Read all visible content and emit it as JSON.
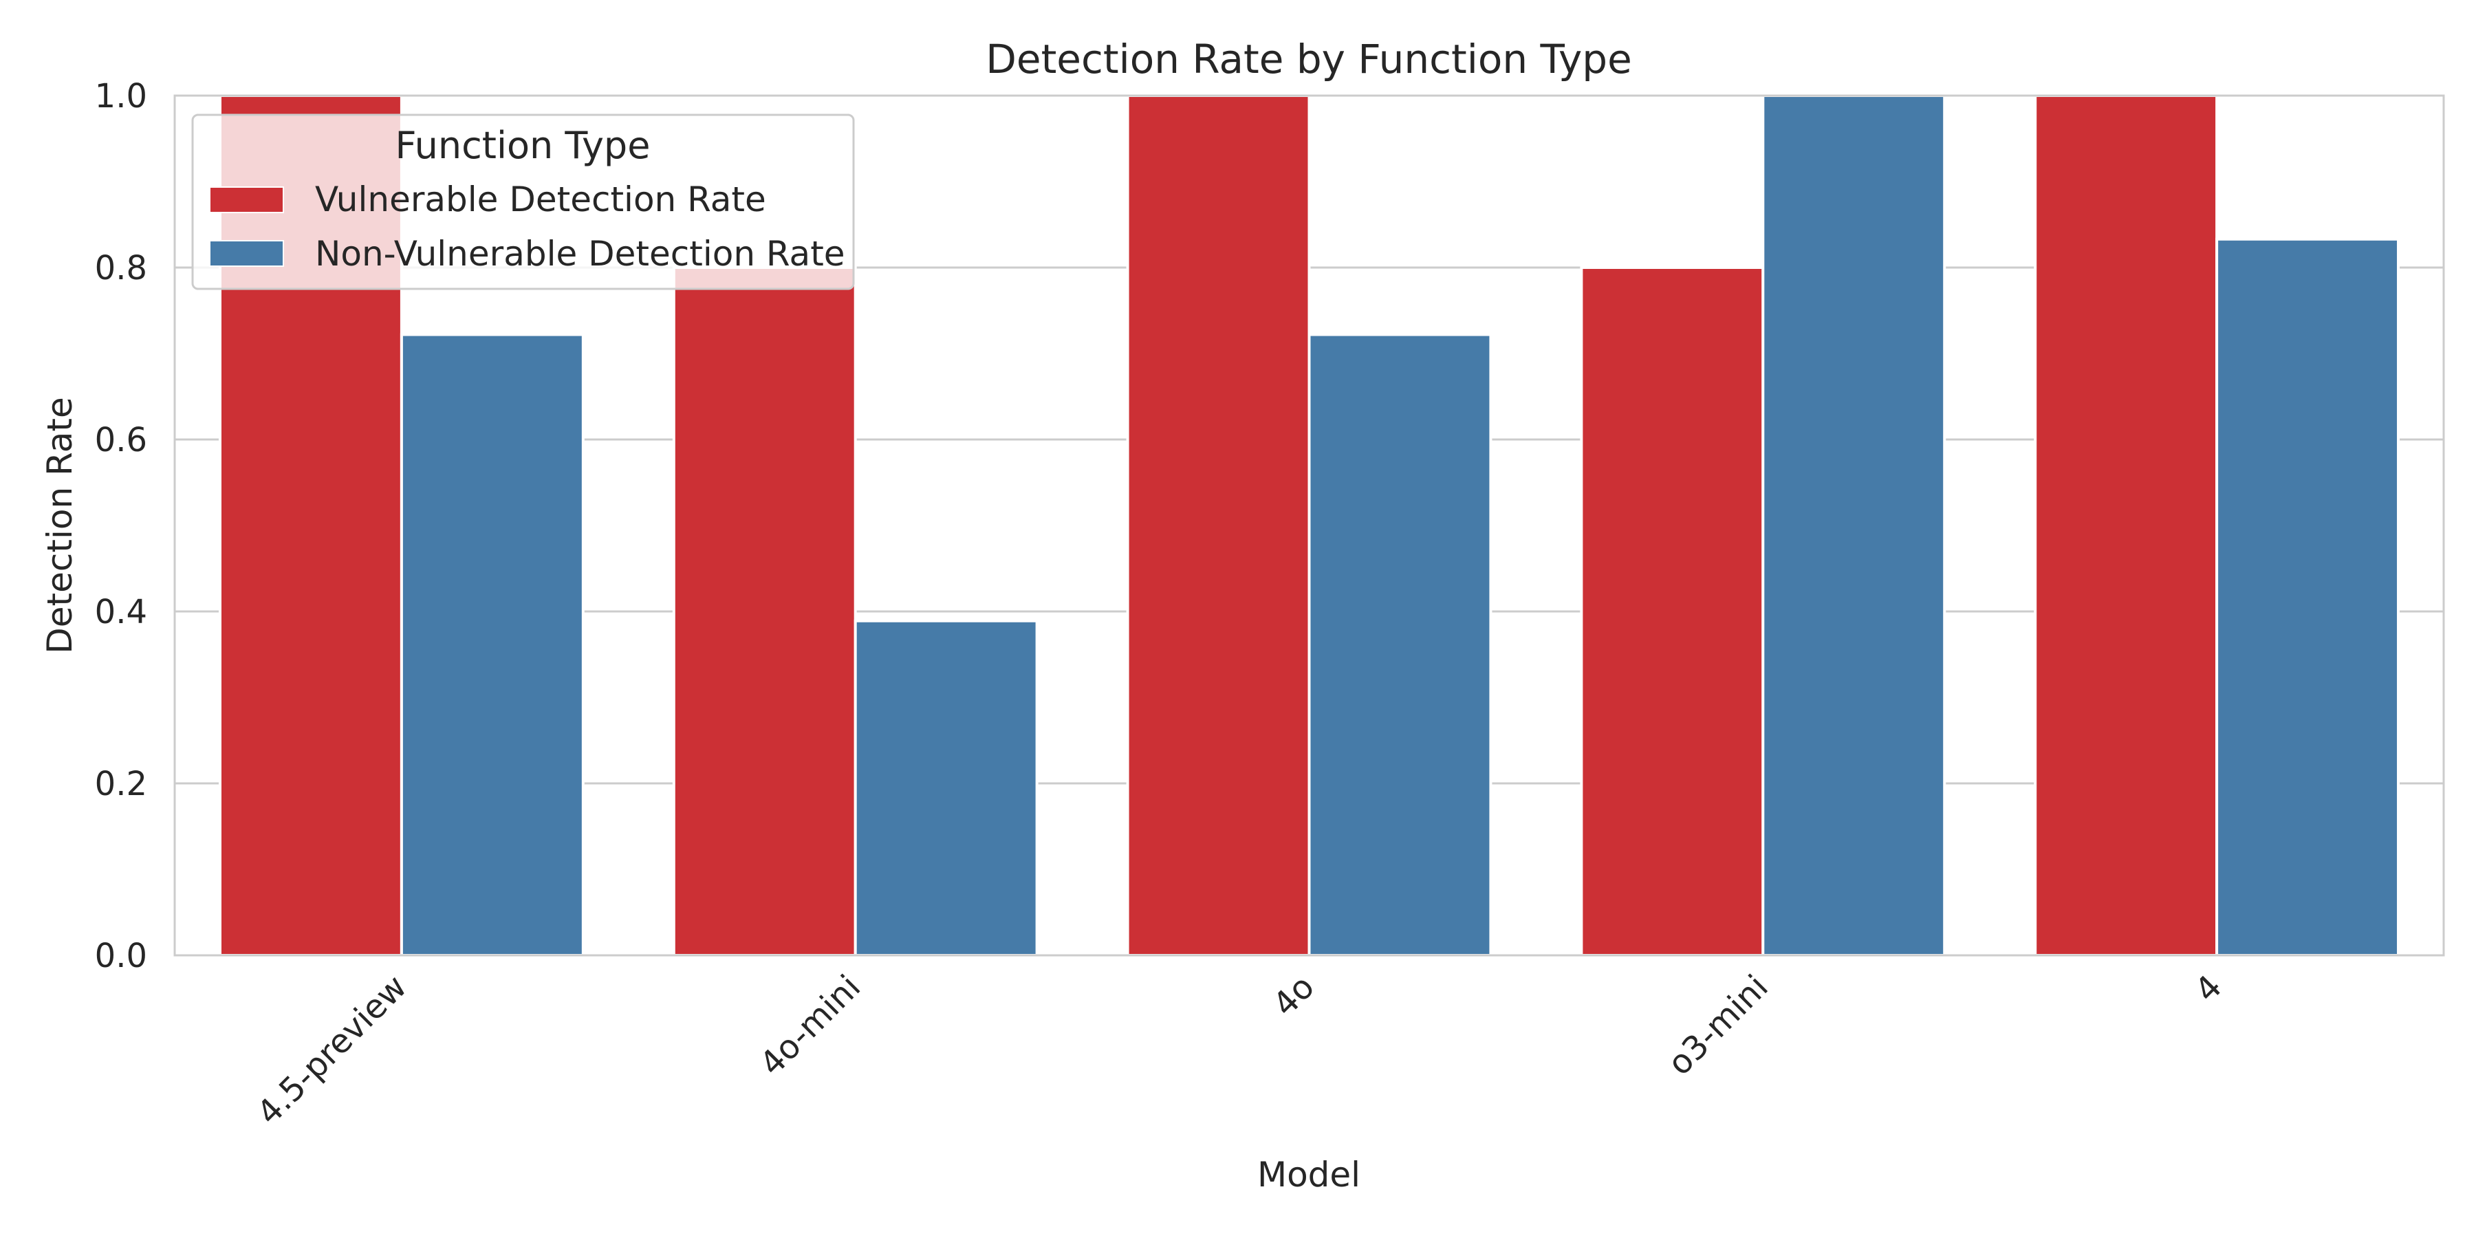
{
  "chart_data": {
    "type": "bar",
    "title": "Detection Rate by Function Type",
    "xlabel": "Model",
    "ylabel": "Detection Rate",
    "ylim": [
      0,
      1.0
    ],
    "yticks": [
      "0.0",
      "0.2",
      "0.4",
      "0.6",
      "0.8",
      "1.0"
    ],
    "categories": [
      "4.5-preview",
      "4o-mini",
      "4o",
      "o3-mini",
      "4"
    ],
    "series": [
      {
        "name": "Vulnerable Detection Rate",
        "color": "#cc3035",
        "values": [
          1.0,
          0.8,
          1.0,
          0.8,
          1.0
        ]
      },
      {
        "name": "Non-Vulnerable Detection Rate",
        "color": "#467ba8",
        "values": [
          0.722,
          0.389,
          0.722,
          1.0,
          0.833
        ]
      }
    ],
    "legend": {
      "title": "Function Type",
      "placement": "upper-left"
    },
    "grid": "horizontal"
  }
}
